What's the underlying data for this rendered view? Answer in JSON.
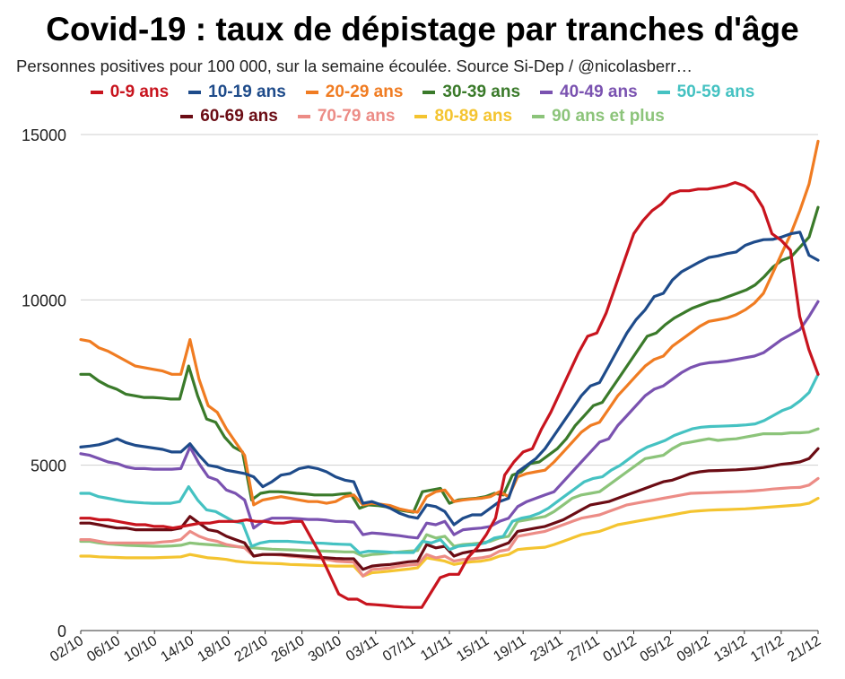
{
  "chart_data": {
    "type": "line",
    "title": "Covid-19 : taux de dépistage par tranches d'âge",
    "subtitle": "Personnes positives pour 100 000, sur la semaine écoulée. Source Si-Dep / @nicolasberr…",
    "ylim": [
      0,
      15000
    ],
    "yticks": [
      0,
      5000,
      10000,
      15000
    ],
    "x_tick_labels": [
      "02/10",
      "06/10",
      "10/10",
      "14/10",
      "18/10",
      "22/10",
      "26/10",
      "30/10",
      "03/11",
      "07/11",
      "11/11",
      "15/11",
      "19/11",
      "23/11",
      "27/11",
      "01/12",
      "05/12",
      "09/12",
      "13/12",
      "17/12",
      "21/12"
    ],
    "legend_position": "top",
    "grid": true,
    "series": [
      {
        "name": "0-9 ans",
        "color": "#c8141e",
        "values": [
          3400,
          3400,
          3350,
          3350,
          3300,
          3250,
          3200,
          3200,
          3150,
          3150,
          3100,
          3150,
          3200,
          3250,
          3250,
          3300,
          3300,
          3300,
          3350,
          3300,
          3300,
          3250,
          3250,
          3300,
          3300,
          2800,
          2300,
          1700,
          1100,
          950,
          950,
          800,
          780,
          760,
          730,
          710,
          700,
          700,
          1150,
          1600,
          1700,
          1700,
          2200,
          2500,
          2900,
          3400,
          4700,
          5100,
          5400,
          5500,
          6100,
          6600,
          7200,
          7800,
          8400,
          8900,
          9000,
          9600,
          10400,
          11200,
          12000,
          12400,
          12700,
          12900,
          13200,
          13300,
          13300,
          13350,
          13350,
          13400,
          13450,
          13550,
          13450,
          13250,
          12800,
          12000,
          11800,
          11500,
          9500,
          8500,
          7750
        ]
      },
      {
        "name": "10-19 ans",
        "color": "#1e4b8a",
        "values": [
          5550,
          5580,
          5620,
          5700,
          5800,
          5680,
          5600,
          5560,
          5520,
          5480,
          5400,
          5400,
          5650,
          5300,
          5000,
          4950,
          4850,
          4800,
          4750,
          4650,
          4350,
          4500,
          4700,
          4750,
          4900,
          4950,
          4900,
          4800,
          4650,
          4550,
          4500,
          3850,
          3900,
          3800,
          3700,
          3550,
          3450,
          3400,
          3800,
          3750,
          3600,
          3200,
          3400,
          3500,
          3500,
          3700,
          3900,
          4000,
          4800,
          5000,
          5200,
          5500,
          5900,
          6300,
          6700,
          7100,
          7400,
          7500,
          8000,
          8500,
          9000,
          9400,
          9700,
          10100,
          10200,
          10600,
          10850,
          11000,
          11150,
          11280,
          11330,
          11400,
          11450,
          11650,
          11750,
          11820,
          11830,
          11900,
          12000,
          12050,
          11350,
          11200
        ]
      },
      {
        "name": "20-29 ans",
        "color": "#f07c22",
        "values": [
          8800,
          8750,
          8550,
          8450,
          8300,
          8150,
          8000,
          7950,
          7900,
          7850,
          7750,
          7750,
          8800,
          7600,
          6800,
          6600,
          6100,
          5700,
          5300,
          3800,
          3950,
          4000,
          4050,
          4000,
          3950,
          3900,
          3900,
          3850,
          3900,
          4050,
          4100,
          3800,
          3850,
          3820,
          3780,
          3680,
          3620,
          3580,
          4050,
          4200,
          4250,
          3900,
          3950,
          3980,
          4000,
          4050,
          4200,
          4050,
          4650,
          4750,
          4800,
          4850,
          5100,
          5400,
          5700,
          6000,
          6200,
          6300,
          6700,
          7100,
          7400,
          7700,
          8000,
          8200,
          8300,
          8600,
          8800,
          9000,
          9200,
          9350,
          9400,
          9450,
          9550,
          9700,
          9900,
          10200,
          10800,
          11400,
          12000,
          12700,
          13500,
          14800
        ]
      },
      {
        "name": "30-39 ans",
        "color": "#3a7a2a",
        "values": [
          7750,
          7750,
          7550,
          7400,
          7300,
          7150,
          7100,
          7050,
          7050,
          7030,
          7000,
          7000,
          8000,
          7100,
          6400,
          6300,
          5850,
          5550,
          5400,
          3950,
          4150,
          4200,
          4200,
          4180,
          4150,
          4130,
          4100,
          4100,
          4100,
          4130,
          4150,
          3700,
          3800,
          3780,
          3740,
          3660,
          3620,
          3580,
          4200,
          4250,
          4300,
          3850,
          3950,
          3980,
          4000,
          4050,
          4150,
          4100,
          4700,
          4800,
          5050,
          5100,
          5300,
          5500,
          5800,
          6200,
          6500,
          6800,
          6900,
          7300,
          7700,
          8100,
          8500,
          8900,
          9000,
          9250,
          9450,
          9600,
          9750,
          9850,
          9950,
          10000,
          10100,
          10200,
          10300,
          10450,
          10700,
          11000,
          11200,
          11300,
          11600,
          11900,
          12800
        ]
      },
      {
        "name": "40-49 ans",
        "color": "#7a52b0",
        "values": [
          5350,
          5300,
          5200,
          5100,
          5050,
          4950,
          4900,
          4900,
          4880,
          4880,
          4880,
          4900,
          5550,
          5050,
          4650,
          4550,
          4250,
          4150,
          3950,
          3100,
          3300,
          3400,
          3400,
          3400,
          3380,
          3360,
          3360,
          3340,
          3300,
          3300,
          3280,
          2900,
          2950,
          2930,
          2900,
          2870,
          2830,
          2800,
          3250,
          3200,
          3300,
          2900,
          3050,
          3080,
          3100,
          3150,
          3300,
          3400,
          3750,
          3900,
          4000,
          4100,
          4200,
          4500,
          4800,
          5100,
          5400,
          5700,
          5800,
          6200,
          6500,
          6800,
          7100,
          7300,
          7400,
          7600,
          7800,
          7950,
          8050,
          8100,
          8120,
          8150,
          8200,
          8250,
          8300,
          8400,
          8600,
          8800,
          8950,
          9100,
          9500,
          9950
        ]
      },
      {
        "name": "50-59 ans",
        "color": "#45c2c2",
        "values": [
          4150,
          4150,
          4050,
          4000,
          3950,
          3900,
          3880,
          3860,
          3850,
          3850,
          3850,
          3900,
          4350,
          3950,
          3650,
          3600,
          3450,
          3300,
          3250,
          2550,
          2650,
          2700,
          2700,
          2700,
          2680,
          2660,
          2650,
          2640,
          2620,
          2610,
          2600,
          2350,
          2400,
          2390,
          2380,
          2360,
          2360,
          2360,
          2700,
          2650,
          2750,
          2450,
          2550,
          2580,
          2600,
          2650,
          2800,
          2850,
          3300,
          3400,
          3450,
          3550,
          3700,
          3900,
          4100,
          4300,
          4500,
          4600,
          4650,
          4850,
          5000,
          5200,
          5400,
          5550,
          5650,
          5750,
          5900,
          6000,
          6100,
          6150,
          6170,
          6180,
          6190,
          6200,
          6220,
          6250,
          6350,
          6500,
          6650,
          6750,
          6950,
          7200,
          7750
        ]
      },
      {
        "name": "60-69 ans",
        "color": "#6b0c14",
        "values": [
          3250,
          3250,
          3200,
          3150,
          3100,
          3100,
          3050,
          3050,
          3050,
          3050,
          3050,
          3100,
          3450,
          3250,
          3050,
          3000,
          2850,
          2750,
          2650,
          2250,
          2300,
          2300,
          2300,
          2280,
          2260,
          2240,
          2220,
          2200,
          2180,
          2170,
          2170,
          1850,
          1950,
          1980,
          2000,
          2040,
          2080,
          2100,
          2600,
          2500,
          2550,
          2250,
          2350,
          2400,
          2420,
          2450,
          2550,
          2650,
          3000,
          3050,
          3100,
          3150,
          3250,
          3350,
          3500,
          3650,
          3800,
          3850,
          3900,
          4000,
          4100,
          4200,
          4300,
          4400,
          4500,
          4550,
          4650,
          4750,
          4800,
          4830,
          4840,
          4850,
          4860,
          4880,
          4900,
          4930,
          4980,
          5030,
          5060,
          5100,
          5200,
          5500
        ]
      },
      {
        "name": "70-79 ans",
        "color": "#ec8c86",
        "values": [
          2750,
          2750,
          2700,
          2650,
          2650,
          2650,
          2650,
          2650,
          2650,
          2680,
          2700,
          2750,
          3000,
          2850,
          2750,
          2700,
          2600,
          2550,
          2500,
          2250,
          2300,
          2300,
          2280,
          2250,
          2230,
          2200,
          2180,
          2150,
          2100,
          2080,
          2070,
          1650,
          1850,
          1870,
          1900,
          1950,
          1980,
          2000,
          2300,
          2200,
          2250,
          2100,
          2150,
          2170,
          2200,
          2250,
          2400,
          2450,
          2850,
          2900,
          2950,
          3000,
          3100,
          3200,
          3300,
          3400,
          3450,
          3500,
          3600,
          3700,
          3800,
          3850,
          3900,
          3950,
          4000,
          4050,
          4100,
          4150,
          4160,
          4170,
          4180,
          4190,
          4200,
          4210,
          4230,
          4250,
          4280,
          4300,
          4320,
          4330,
          4400,
          4600
        ]
      },
      {
        "name": "80-89 ans",
        "color": "#f4c430",
        "values": [
          2250,
          2250,
          2230,
          2220,
          2210,
          2200,
          2200,
          2200,
          2200,
          2210,
          2220,
          2230,
          2300,
          2250,
          2200,
          2180,
          2150,
          2100,
          2070,
          2050,
          2040,
          2030,
          2020,
          2000,
          1990,
          1980,
          1970,
          1960,
          1950,
          1950,
          1950,
          1650,
          1750,
          1770,
          1800,
          1830,
          1860,
          1900,
          2200,
          2150,
          2100,
          2000,
          2050,
          2080,
          2100,
          2150,
          2250,
          2300,
          2450,
          2480,
          2500,
          2520,
          2600,
          2700,
          2800,
          2900,
          2950,
          3000,
          3100,
          3200,
          3250,
          3300,
          3350,
          3400,
          3450,
          3500,
          3550,
          3600,
          3620,
          3640,
          3650,
          3660,
          3670,
          3680,
          3700,
          3720,
          3740,
          3760,
          3780,
          3800,
          3850,
          4000
        ]
      },
      {
        "name": "90 ans et plus",
        "color": "#8cc47a",
        "values": [
          2700,
          2700,
          2650,
          2620,
          2600,
          2580,
          2570,
          2560,
          2550,
          2550,
          2560,
          2580,
          2650,
          2620,
          2600,
          2580,
          2560,
          2540,
          2520,
          2500,
          2480,
          2460,
          2450,
          2440,
          2430,
          2420,
          2410,
          2400,
          2390,
          2380,
          2380,
          2250,
          2300,
          2320,
          2350,
          2380,
          2400,
          2420,
          2900,
          2800,
          2850,
          2550,
          2600,
          2620,
          2650,
          2700,
          2800,
          2850,
          3300,
          3350,
          3400,
          3450,
          3600,
          3800,
          4000,
          4100,
          4150,
          4200,
          4400,
          4600,
          4800,
          5000,
          5200,
          5250,
          5300,
          5500,
          5650,
          5700,
          5750,
          5800,
          5750,
          5780,
          5800,
          5850,
          5900,
          5950,
          5950,
          5950,
          5980,
          5980,
          6000,
          6100
        ]
      }
    ]
  }
}
